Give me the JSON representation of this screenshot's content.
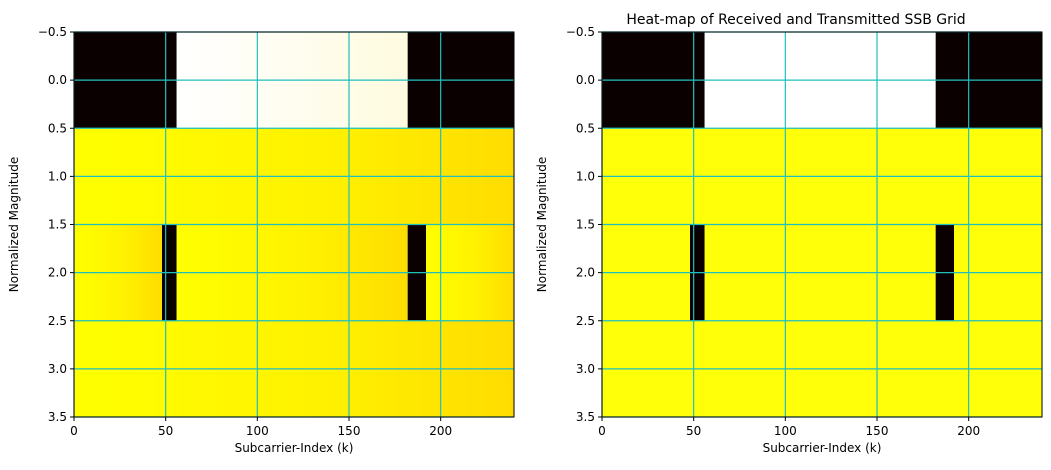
{
  "figure": {
    "title": "Heat-map of Received and Transmitted SSB Grid"
  },
  "chart_data": [
    {
      "type": "heatmap",
      "title": "",
      "xlabel": "Subcarrier-Index (k)",
      "ylabel": "Normalized Magnitude",
      "xlim": [
        0,
        240
      ],
      "ylim": [
        3.5,
        -0.5
      ],
      "xticks": [
        0,
        50,
        100,
        150,
        200
      ],
      "yticks": [
        -0.5,
        0.0,
        0.5,
        1.0,
        1.5,
        2.0,
        2.5,
        3.0,
        3.5
      ],
      "xtick_labels": [
        "0",
        "50",
        "100",
        "150",
        "200"
      ],
      "ytick_labels": [
        "−0.5",
        "0.0",
        "0.5",
        "1.0",
        "1.5",
        "2.0",
        "2.5",
        "3.0",
        "3.5"
      ],
      "colormap": "hot",
      "grid": true,
      "grid_color": "#1fbfbf",
      "rows": [
        {
          "row": 0,
          "segments": [
            {
              "k0": 0,
              "k1": 56,
              "value": 0.0
            },
            {
              "k0": 56,
              "k1": 182,
              "value": 1.0
            },
            {
              "k0": 182,
              "k1": 240,
              "value": 0.0
            }
          ]
        },
        {
          "row": 1,
          "segments": [
            {
              "k0": 0,
              "k1": 240,
              "value": 0.85
            }
          ]
        },
        {
          "row": 2,
          "segments": [
            {
              "k0": 0,
              "k1": 48,
              "value": 0.85
            },
            {
              "k0": 48,
              "k1": 56,
              "value": 0.0
            },
            {
              "k0": 56,
              "k1": 182,
              "value": 0.85
            },
            {
              "k0": 182,
              "k1": 192,
              "value": 0.0
            },
            {
              "k0": 192,
              "k1": 240,
              "value": 0.85
            }
          ]
        },
        {
          "row": 3,
          "segments": [
            {
              "k0": 0,
              "k1": 240,
              "value": 0.85
            }
          ]
        }
      ],
      "variation": "received"
    },
    {
      "type": "heatmap",
      "title": "",
      "xlabel": "Subcarrier-Index (k)",
      "ylabel": "Normalized Magnitude",
      "xlim": [
        0,
        240
      ],
      "ylim": [
        3.5,
        -0.5
      ],
      "xticks": [
        0,
        50,
        100,
        150,
        200
      ],
      "yticks": [
        -0.5,
        0.0,
        0.5,
        1.0,
        1.5,
        2.0,
        2.5,
        3.0,
        3.5
      ],
      "xtick_labels": [
        "0",
        "50",
        "100",
        "150",
        "200"
      ],
      "ytick_labels": [
        "−0.5",
        "0.0",
        "0.5",
        "1.0",
        "1.5",
        "2.0",
        "2.5",
        "3.0",
        "3.5"
      ],
      "colormap": "hot",
      "grid": true,
      "grid_color": "#1fbfbf",
      "rows": [
        {
          "row": 0,
          "segments": [
            {
              "k0": 0,
              "k1": 56,
              "value": 0.0
            },
            {
              "k0": 56,
              "k1": 182,
              "value": 1.0
            },
            {
              "k0": 182,
              "k1": 240,
              "value": 0.0
            }
          ]
        },
        {
          "row": 1,
          "segments": [
            {
              "k0": 0,
              "k1": 240,
              "value": 0.85
            }
          ]
        },
        {
          "row": 2,
          "segments": [
            {
              "k0": 0,
              "k1": 48,
              "value": 0.85
            },
            {
              "k0": 48,
              "k1": 56,
              "value": 0.0
            },
            {
              "k0": 56,
              "k1": 182,
              "value": 0.85
            },
            {
              "k0": 182,
              "k1": 192,
              "value": 0.0
            },
            {
              "k0": 192,
              "k1": 240,
              "value": 0.85
            }
          ]
        },
        {
          "row": 3,
          "segments": [
            {
              "k0": 0,
              "k1": 240,
              "value": 0.85
            }
          ]
        }
      ],
      "variation": "transmitted"
    }
  ]
}
